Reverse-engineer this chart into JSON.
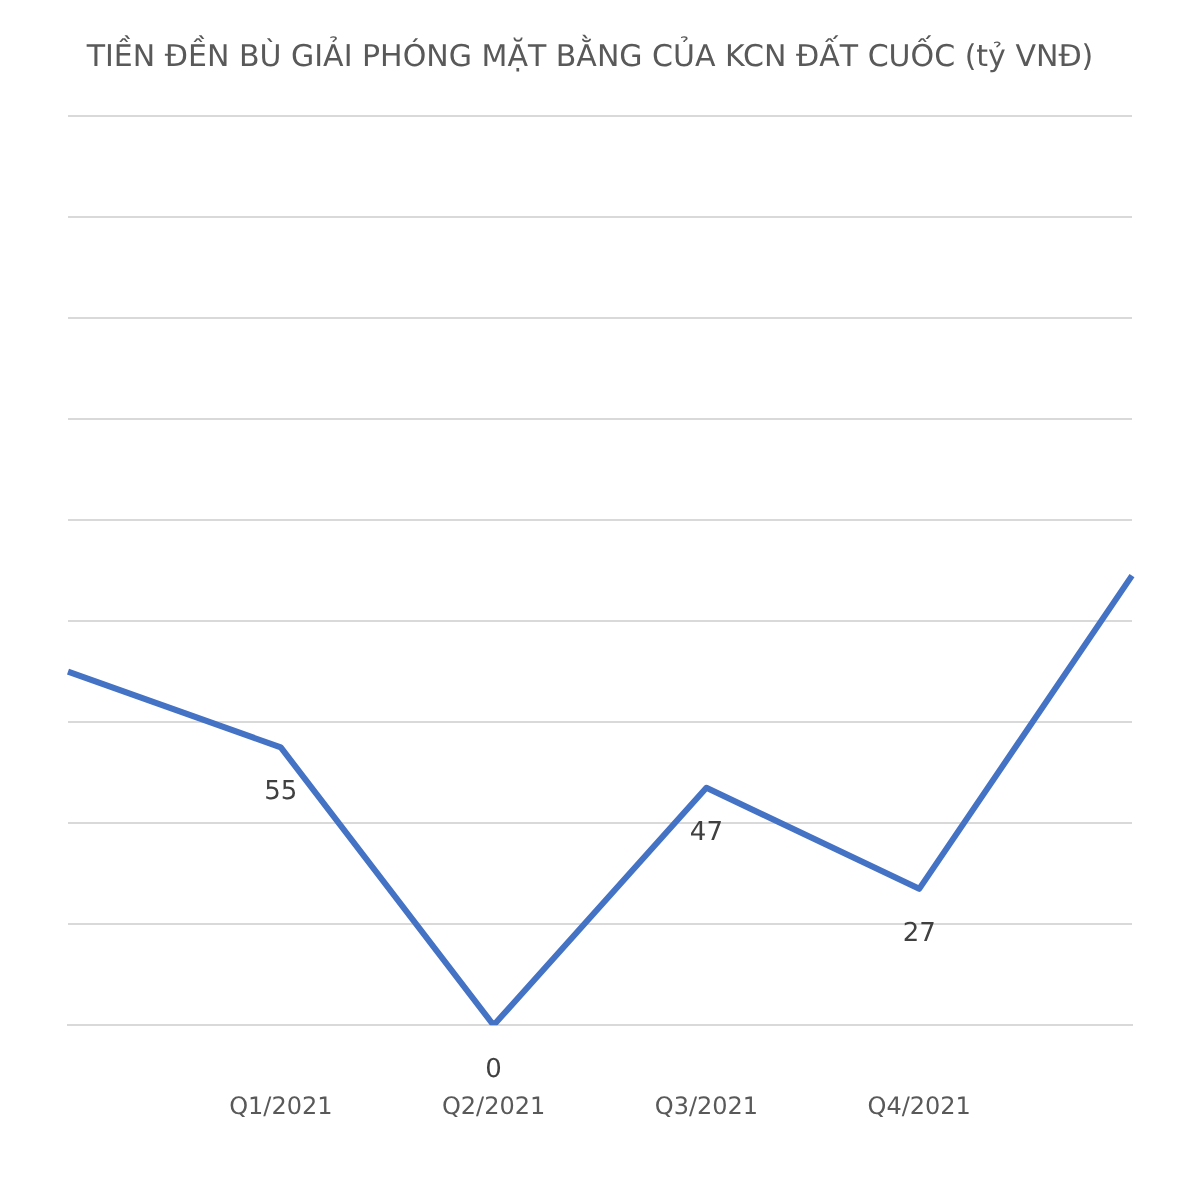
{
  "chart_data": {
    "type": "line",
    "title": "TIỀN ĐỀN BÙ GIẢI PHÓNG MẶT BẰNG CỦA KCN ĐẤT CUỐC (tỷ VNĐ)",
    "categories": [
      null,
      "Q1/2021",
      "Q2/2021",
      "Q3/2021",
      "Q4/2021",
      null
    ],
    "series": [
      {
        "color": "#4472c4",
        "values": [
          70,
          55,
          0,
          47,
          27,
          89
        ],
        "value_labels": [
          null,
          "55",
          "0",
          "47",
          "27",
          null
        ]
      }
    ],
    "ylim": [
      0,
      180
    ],
    "yticks": [
      {
        "value": 0,
        "label": null
      },
      {
        "value": 20,
        "label": null
      },
      {
        "value": 40,
        "label": null
      },
      {
        "value": 60,
        "label": null
      },
      {
        "value": 80,
        "label": null
      },
      {
        "value": 100,
        "label": null
      },
      {
        "value": 120,
        "label": null
      },
      {
        "value": 140,
        "label": null
      },
      {
        "value": 160,
        "label": null
      },
      {
        "value": 180,
        "label": null
      }
    ],
    "grid": "y",
    "legend": false,
    "marker": "none",
    "line_style": "solid",
    "tick_labels": "x"
  }
}
